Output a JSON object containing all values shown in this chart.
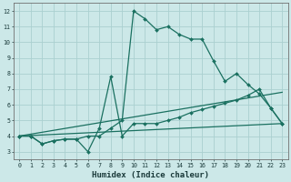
{
  "xlabel": "Humidex (Indice chaleur)",
  "bg_color": "#cce8e8",
  "grid_color": "#aad0d0",
  "line_color": "#1a7060",
  "xlim": [
    -0.5,
    23.5
  ],
  "ylim": [
    2.5,
    12.5
  ],
  "xticks": [
    0,
    1,
    2,
    3,
    4,
    5,
    6,
    7,
    8,
    9,
    10,
    11,
    12,
    13,
    14,
    15,
    16,
    17,
    18,
    19,
    20,
    21,
    22,
    23
  ],
  "yticks": [
    3,
    4,
    5,
    6,
    7,
    8,
    9,
    10,
    11,
    12
  ],
  "curve1_x": [
    0,
    1,
    2,
    3,
    4,
    5,
    6,
    7,
    8,
    9,
    10,
    11,
    12,
    13,
    14,
    15,
    16,
    17,
    18,
    19,
    20,
    21,
    22,
    23
  ],
  "curve1_y": [
    4.0,
    4.0,
    3.5,
    3.7,
    3.8,
    3.8,
    4.0,
    4.0,
    4.5,
    5.0,
    12.0,
    11.5,
    10.8,
    11.0,
    10.5,
    10.2,
    10.2,
    8.8,
    7.5,
    8.0,
    7.3,
    6.7,
    5.8,
    4.8
  ],
  "curve2_x": [
    0,
    1,
    2,
    3,
    4,
    5,
    6,
    7,
    8,
    9,
    10,
    11,
    12,
    13,
    14,
    15,
    16,
    17,
    18,
    19,
    20,
    21,
    22,
    23
  ],
  "curve2_y": [
    4.0,
    4.0,
    3.5,
    3.7,
    3.8,
    3.8,
    3.0,
    4.5,
    7.8,
    4.0,
    4.8,
    4.8,
    4.8,
    5.0,
    5.2,
    5.5,
    5.7,
    5.9,
    6.1,
    6.3,
    6.6,
    7.0,
    5.8,
    4.8
  ],
  "curve3_x": [
    0,
    23
  ],
  "curve3_y": [
    4.0,
    4.8
  ],
  "curve4_x": [
    0,
    23
  ],
  "curve4_y": [
    4.0,
    6.8
  ]
}
